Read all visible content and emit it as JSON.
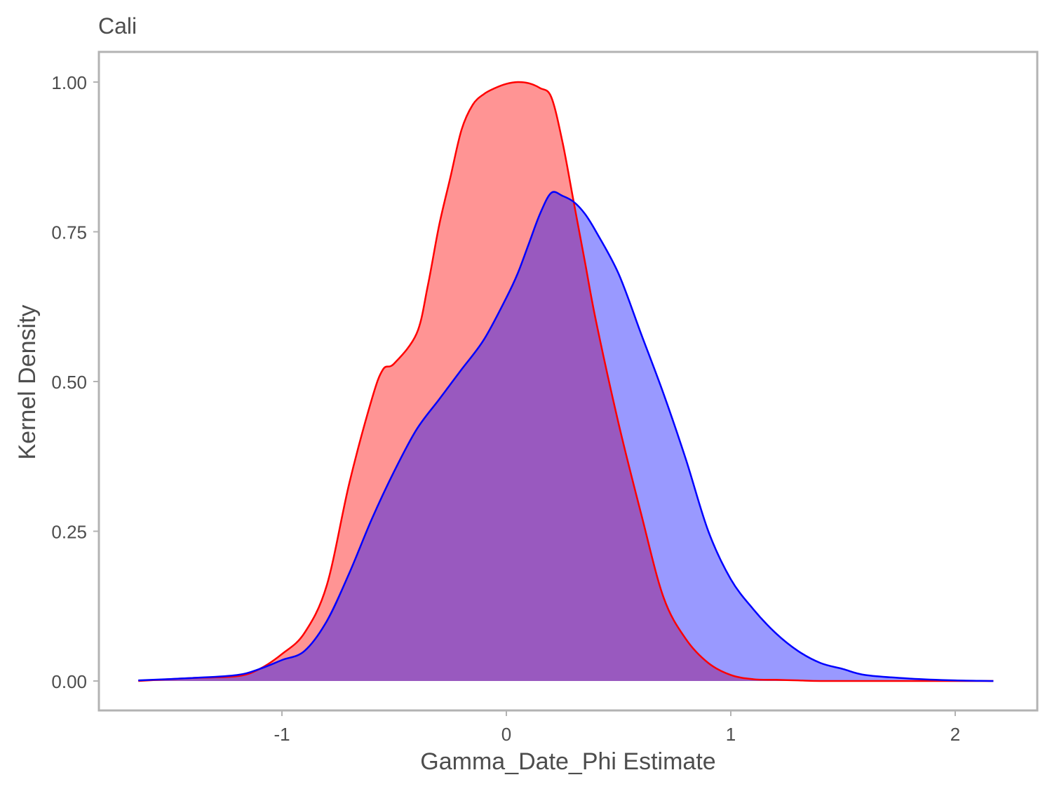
{
  "chart_data": {
    "type": "area",
    "title": "Cali",
    "xlabel": "Gamma_Date_Phi Estimate",
    "ylabel": "Kernel Density",
    "xlim": [
      -1.65,
      2.18
    ],
    "ylim": [
      0,
      1.0
    ],
    "xticks": [
      -1,
      0,
      1,
      2
    ],
    "xtick_labels": [
      "-1",
      "0",
      "1",
      "2"
    ],
    "yticks": [
      0,
      0.25,
      0.5,
      0.75,
      1.0
    ],
    "ytick_labels": [
      "0.00",
      "0.25",
      "0.50",
      "0.75",
      "1.00"
    ],
    "grid": false,
    "legend": "none",
    "series": [
      {
        "color": "#ff0000",
        "fill": "#ff0000",
        "fill_opacity": 0.42,
        "x": [
          -1.64,
          -1.4,
          -1.2,
          -1.1,
          -1.0,
          -0.9,
          -0.8,
          -0.7,
          -0.6,
          -0.55,
          -0.5,
          -0.4,
          -0.35,
          -0.3,
          -0.25,
          -0.2,
          -0.15,
          -0.1,
          -0.05,
          0.0,
          0.05,
          0.1,
          0.15,
          0.2,
          0.25,
          0.3,
          0.35,
          0.4,
          0.5,
          0.6,
          0.7,
          0.8,
          0.9,
          1.0,
          1.1,
          1.2,
          1.3,
          1.4,
          1.6,
          1.8,
          2.0,
          2.17
        ],
        "y": [
          0.0,
          0.005,
          0.008,
          0.02,
          0.045,
          0.08,
          0.16,
          0.33,
          0.47,
          0.52,
          0.53,
          0.58,
          0.66,
          0.76,
          0.84,
          0.92,
          0.962,
          0.98,
          0.99,
          0.997,
          1.0,
          0.998,
          0.99,
          0.975,
          0.9,
          0.8,
          0.7,
          0.6,
          0.43,
          0.28,
          0.14,
          0.07,
          0.03,
          0.01,
          0.003,
          0.002,
          0.001,
          0.0,
          0.0,
          0.0,
          0.0,
          0.0
        ]
      },
      {
        "color": "#0000ff",
        "fill": "#0000ff",
        "fill_opacity": 0.4,
        "x": [
          -1.64,
          -1.4,
          -1.2,
          -1.1,
          -1.0,
          -0.9,
          -0.8,
          -0.7,
          -0.6,
          -0.5,
          -0.4,
          -0.3,
          -0.2,
          -0.1,
          0.0,
          0.05,
          0.1,
          0.15,
          0.2,
          0.25,
          0.3,
          0.35,
          0.4,
          0.5,
          0.6,
          0.7,
          0.8,
          0.9,
          1.0,
          1.1,
          1.2,
          1.3,
          1.4,
          1.5,
          1.6,
          1.8,
          2.0,
          2.17
        ],
        "y": [
          0.001,
          0.005,
          0.01,
          0.02,
          0.035,
          0.05,
          0.1,
          0.18,
          0.27,
          0.35,
          0.42,
          0.47,
          0.52,
          0.57,
          0.64,
          0.68,
          0.73,
          0.78,
          0.815,
          0.81,
          0.8,
          0.78,
          0.75,
          0.68,
          0.58,
          0.48,
          0.37,
          0.25,
          0.17,
          0.12,
          0.08,
          0.05,
          0.03,
          0.02,
          0.01,
          0.004,
          0.001,
          0.0
        ]
      }
    ]
  }
}
